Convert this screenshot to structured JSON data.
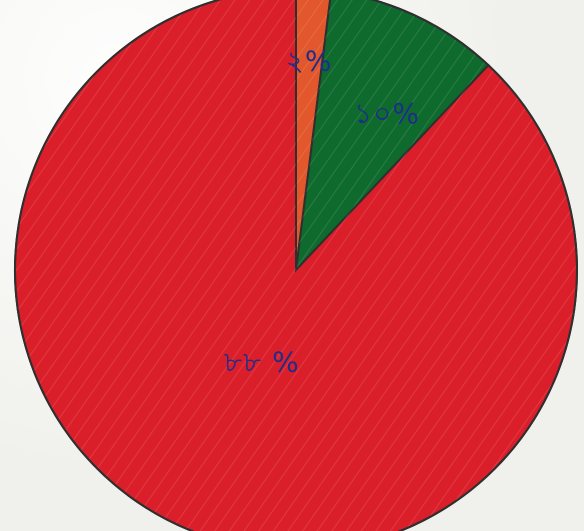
{
  "chart_data": {
    "type": "pie",
    "start_angle_deg": -90,
    "direction": "clockwise",
    "slices": [
      {
        "label": "২%",
        "value": 2,
        "color": "#e2572b"
      },
      {
        "label": "১০%",
        "value": 10,
        "color": "#0f6a2d"
      },
      {
        "label": "৮৮ %",
        "value": 88,
        "color": "#db1f2a"
      }
    ],
    "outline_color": "#2f2f2f"
  }
}
